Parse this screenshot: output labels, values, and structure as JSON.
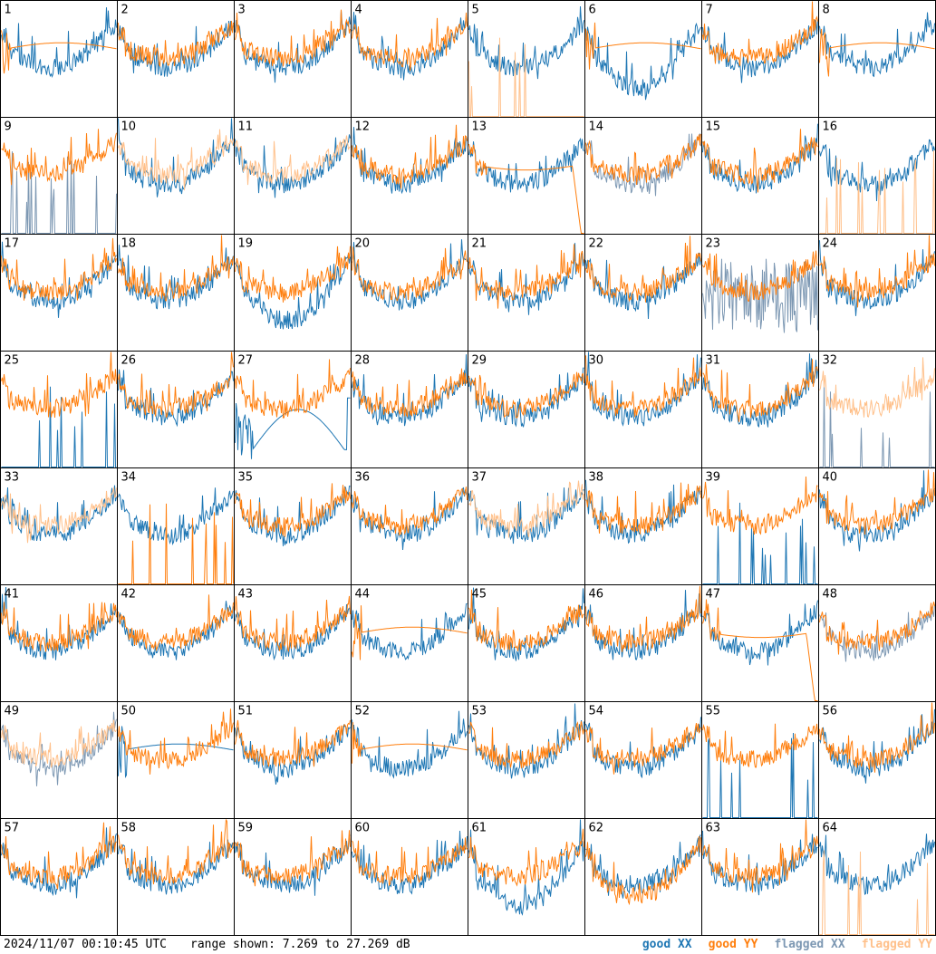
{
  "footer": {
    "timestamp": "2024/11/07 00:10:45 UTC",
    "range_text": "range shown: 7.269 to 27.269 dB"
  },
  "chart_data": {
    "type": "line",
    "ylim": [
      7.269,
      27.269
    ],
    "grid": false,
    "legend_placement": "bottom-right",
    "colors": {
      "good_xx": "#1f77b4",
      "good_yy": "#ff7f0e",
      "flagged_xx": "#7d98b3",
      "flagged_yy": "#ffc08a"
    },
    "legend": [
      {
        "key": "good_xx",
        "label": "good XX",
        "color": "#1f77b4"
      },
      {
        "key": "good_yy",
        "label": "good YY",
        "color": "#ff7f0e"
      },
      {
        "key": "flagged_xx",
        "label": "flagged XX",
        "color": "#7d98b3"
      },
      {
        "key": "flagged_yy",
        "label": "flagged YY",
        "color": "#ffc08a"
      }
    ],
    "panels": [
      {
        "label": "1",
        "xx": "good",
        "yy": "good",
        "xx_style": "normal",
        "yy_style": "smooth"
      },
      {
        "label": "2",
        "xx": "good",
        "yy": "good",
        "xx_style": "normal",
        "yy_style": "normal"
      },
      {
        "label": "3",
        "xx": "good",
        "yy": "good",
        "xx_style": "normal",
        "yy_style": "normal"
      },
      {
        "label": "4",
        "xx": "good",
        "yy": "good",
        "xx_style": "normal",
        "yy_style": "normal"
      },
      {
        "label": "5",
        "xx": "good",
        "yy": "flagged",
        "xx_style": "normal",
        "yy_style": "spikes"
      },
      {
        "label": "6",
        "xx": "good",
        "yy": "good",
        "xx_style": "deep",
        "yy_style": "smooth"
      },
      {
        "label": "7",
        "xx": "good",
        "yy": "good",
        "xx_style": "normal",
        "yy_style": "normal"
      },
      {
        "label": "8",
        "xx": "good",
        "yy": "good",
        "xx_style": "normal",
        "yy_style": "smooth"
      },
      {
        "label": "9",
        "xx": "flagged",
        "yy": "good",
        "xx_style": "spikes",
        "yy_style": "normal"
      },
      {
        "label": "10",
        "xx": "good",
        "yy": "flagged",
        "xx_style": "normal",
        "yy_style": "normal"
      },
      {
        "label": "11",
        "xx": "good",
        "yy": "flagged",
        "xx_style": "normal",
        "yy_style": "normal"
      },
      {
        "label": "12",
        "xx": "good",
        "yy": "good",
        "xx_style": "normal",
        "yy_style": "normal"
      },
      {
        "label": "13",
        "xx": "good",
        "yy": "good",
        "xx_style": "normal",
        "yy_style": "drop"
      },
      {
        "label": "14",
        "xx": "flagged",
        "yy": "good",
        "xx_style": "normal",
        "yy_style": "normal"
      },
      {
        "label": "15",
        "xx": "good",
        "yy": "good",
        "xx_style": "normal",
        "yy_style": "normal"
      },
      {
        "label": "16",
        "xx": "good",
        "yy": "flagged",
        "xx_style": "normal",
        "yy_style": "spikes"
      },
      {
        "label": "17",
        "xx": "good",
        "yy": "good",
        "xx_style": "normal",
        "yy_style": "normal"
      },
      {
        "label": "18",
        "xx": "good",
        "yy": "good",
        "xx_style": "normal",
        "yy_style": "normal"
      },
      {
        "label": "19",
        "xx": "good",
        "yy": "good",
        "xx_style": "deep",
        "yy_style": "normal"
      },
      {
        "label": "20",
        "xx": "good",
        "yy": "good",
        "xx_style": "normal",
        "yy_style": "normal"
      },
      {
        "label": "21",
        "xx": "good",
        "yy": "good",
        "xx_style": "normal",
        "yy_style": "normal"
      },
      {
        "label": "22",
        "xx": "good",
        "yy": "good",
        "xx_style": "normal",
        "yy_style": "normal"
      },
      {
        "label": "23",
        "xx": "flagged",
        "yy": "good",
        "xx_style": "noisy",
        "yy_style": "normal"
      },
      {
        "label": "24",
        "xx": "good",
        "yy": "good",
        "xx_style": "normal",
        "yy_style": "normal"
      },
      {
        "label": "25",
        "xx": "good",
        "yy": "good",
        "xx_style": "spikes",
        "yy_style": "normal"
      },
      {
        "label": "26",
        "xx": "good",
        "yy": "good",
        "xx_style": "normal",
        "yy_style": "normal"
      },
      {
        "label": "27",
        "xx": "good",
        "yy": "good",
        "xx_style": "arc",
        "yy_style": "normal"
      },
      {
        "label": "28",
        "xx": "good",
        "yy": "good",
        "xx_style": "normal",
        "yy_style": "normal"
      },
      {
        "label": "29",
        "xx": "good",
        "yy": "good",
        "xx_style": "normal",
        "yy_style": "normal"
      },
      {
        "label": "30",
        "xx": "good",
        "yy": "good",
        "xx_style": "normal",
        "yy_style": "normal"
      },
      {
        "label": "31",
        "xx": "good",
        "yy": "good",
        "xx_style": "normal",
        "yy_style": "normal"
      },
      {
        "label": "32",
        "xx": "flagged",
        "yy": "flagged",
        "xx_style": "spikes",
        "yy_style": "normal"
      },
      {
        "label": "33",
        "xx": "good",
        "yy": "flagged",
        "xx_style": "normal",
        "yy_style": "normal"
      },
      {
        "label": "34",
        "xx": "good",
        "yy": "good",
        "xx_style": "normal",
        "yy_style": "spikes"
      },
      {
        "label": "35",
        "xx": "good",
        "yy": "good",
        "xx_style": "normal",
        "yy_style": "normal"
      },
      {
        "label": "36",
        "xx": "good",
        "yy": "good",
        "xx_style": "normal",
        "yy_style": "normal"
      },
      {
        "label": "37",
        "xx": "good",
        "yy": "flagged",
        "xx_style": "normal",
        "yy_style": "normal"
      },
      {
        "label": "38",
        "xx": "good",
        "yy": "good",
        "xx_style": "normal",
        "yy_style": "normal"
      },
      {
        "label": "39",
        "xx": "good",
        "yy": "good",
        "xx_style": "spikes",
        "yy_style": "normal"
      },
      {
        "label": "40",
        "xx": "good",
        "yy": "good",
        "xx_style": "normal",
        "yy_style": "normal"
      },
      {
        "label": "41",
        "xx": "good",
        "yy": "good",
        "xx_style": "normal",
        "yy_style": "normal"
      },
      {
        "label": "42",
        "xx": "good",
        "yy": "good",
        "xx_style": "normal",
        "yy_style": "normal"
      },
      {
        "label": "43",
        "xx": "good",
        "yy": "good",
        "xx_style": "normal",
        "yy_style": "normal"
      },
      {
        "label": "44",
        "xx": "good",
        "yy": "good",
        "xx_style": "normal",
        "yy_style": "smooth"
      },
      {
        "label": "45",
        "xx": "good",
        "yy": "good",
        "xx_style": "normal",
        "yy_style": "normal"
      },
      {
        "label": "46",
        "xx": "good",
        "yy": "good",
        "xx_style": "normal",
        "yy_style": "normal"
      },
      {
        "label": "47",
        "xx": "good",
        "yy": "good",
        "xx_style": "normal",
        "yy_style": "drop"
      },
      {
        "label": "48",
        "xx": "flagged",
        "yy": "good",
        "xx_style": "normal",
        "yy_style": "normal"
      },
      {
        "label": "49",
        "xx": "flagged",
        "yy": "flagged",
        "xx_style": "normal",
        "yy_style": "normal"
      },
      {
        "label": "50",
        "xx": "good",
        "yy": "good",
        "xx_style": "smooth",
        "yy_style": "normal"
      },
      {
        "label": "51",
        "xx": "good",
        "yy": "good",
        "xx_style": "normal",
        "yy_style": "normal"
      },
      {
        "label": "52",
        "xx": "good",
        "yy": "good",
        "xx_style": "normal",
        "yy_style": "smooth"
      },
      {
        "label": "53",
        "xx": "good",
        "yy": "good",
        "xx_style": "normal",
        "yy_style": "normal"
      },
      {
        "label": "54",
        "xx": "good",
        "yy": "good",
        "xx_style": "normal",
        "yy_style": "normal"
      },
      {
        "label": "55",
        "xx": "good",
        "yy": "good",
        "xx_style": "spikes",
        "yy_style": "normal"
      },
      {
        "label": "56",
        "xx": "good",
        "yy": "good",
        "xx_style": "normal",
        "yy_style": "normal"
      },
      {
        "label": "57",
        "xx": "good",
        "yy": "good",
        "xx_style": "normal",
        "yy_style": "normal"
      },
      {
        "label": "58",
        "xx": "good",
        "yy": "good",
        "xx_style": "normal",
        "yy_style": "normal"
      },
      {
        "label": "59",
        "xx": "good",
        "yy": "good",
        "xx_style": "normal",
        "yy_style": "normal"
      },
      {
        "label": "60",
        "xx": "good",
        "yy": "good",
        "xx_style": "normal",
        "yy_style": "normal"
      },
      {
        "label": "61",
        "xx": "good",
        "yy": "good",
        "xx_style": "deep",
        "yy_style": "normal"
      },
      {
        "label": "62",
        "xx": "good",
        "yy": "good",
        "xx_style": "normal",
        "yy_style": "deep"
      },
      {
        "label": "63",
        "xx": "good",
        "yy": "good",
        "xx_style": "normal",
        "yy_style": "normal"
      },
      {
        "label": "64",
        "xx": "good",
        "yy": "flagged",
        "xx_style": "normal",
        "yy_style": "spikes"
      }
    ]
  }
}
